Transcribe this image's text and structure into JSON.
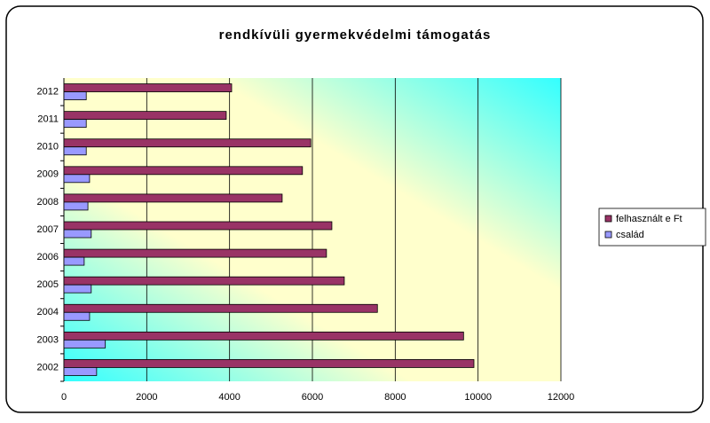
{
  "chart_data": {
    "type": "hbar",
    "title": "rendkívüli gyermekvédelmi támogatás",
    "categories": [
      "2002",
      "2003",
      "2004",
      "2005",
      "2006",
      "2007",
      "2008",
      "2009",
      "2010",
      "2011",
      "2012"
    ],
    "series": [
      {
        "name": "felhasznált e Ft",
        "color": "#993366",
        "values": [
          9900,
          9650,
          7570,
          6770,
          6340,
          6470,
          5270,
          5760,
          5960,
          3920,
          4050
        ]
      },
      {
        "name": "család",
        "color": "#9999ff",
        "values": [
          790,
          1000,
          620,
          660,
          490,
          660,
          580,
          620,
          540,
          540,
          540
        ]
      }
    ],
    "xlim": [
      0,
      12000
    ],
    "xticks": [
      0,
      2000,
      4000,
      6000,
      8000,
      10000,
      12000
    ],
    "grid": true,
    "legend": "right"
  }
}
